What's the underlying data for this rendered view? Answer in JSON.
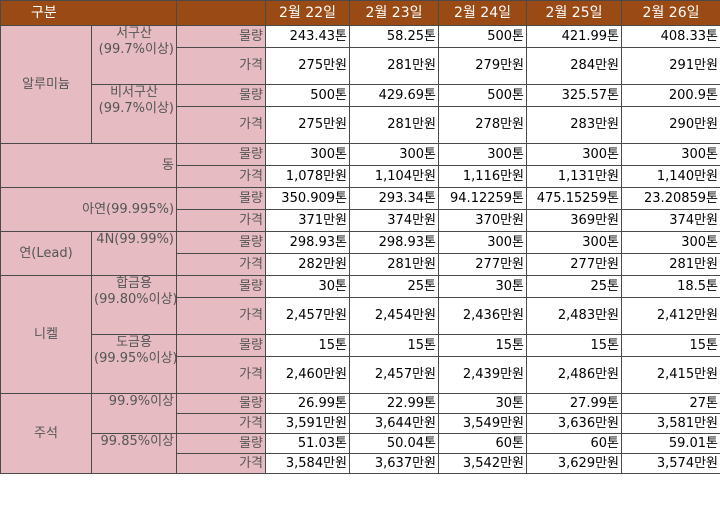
{
  "header": {
    "category": "구분",
    "dates": [
      "2월 22일",
      "2월 23일",
      "2월 24일",
      "2월 25일",
      "2월 26일"
    ]
  },
  "labels": {
    "qty": "물량",
    "price": "가격"
  },
  "groups": {
    "aluminum": {
      "name": "알루미늄",
      "sub1": {
        "name": "서구산",
        "purity": "(99.7%이상)",
        "qty": [
          "243.43톤",
          "58.25톤",
          "500톤",
          "421.99톤",
          "408.33톤"
        ],
        "price": [
          "275만원",
          "281만원",
          "279만원",
          "284만원",
          "291만원"
        ]
      },
      "sub2": {
        "name": "비서구산",
        "purity": "(99.7%이상)",
        "qty": [
          "500톤",
          "429.69톤",
          "500톤",
          "325.57톤",
          "200.9톤"
        ],
        "price": [
          "275만원",
          "281만원",
          "278만원",
          "283만원",
          "290만원"
        ]
      }
    },
    "copper": {
      "name": "동",
      "qty": [
        "300톤",
        "300톤",
        "300톤",
        "300톤",
        "300톤"
      ],
      "price": [
        "1,078만원",
        "1,104만원",
        "1,116만원",
        "1,131만원",
        "1,140만원"
      ]
    },
    "zinc": {
      "name": "아연(99.995%)",
      "qty": [
        "350.909톤",
        "293.34톤",
        "94.12259톤",
        "475.15259톤",
        "23.20859톤"
      ],
      "price": [
        "371만원",
        "374만원",
        "370만원",
        "369만원",
        "374만원"
      ]
    },
    "lead": {
      "name": "연(Lead)",
      "sub": "4N(99.99%)",
      "qty": [
        "298.93톤",
        "298.93톤",
        "300톤",
        "300톤",
        "300톤"
      ],
      "price": [
        "282만원",
        "281만원",
        "277만원",
        "277만원",
        "281만원"
      ]
    },
    "nickel": {
      "name": "니켈",
      "sub1": {
        "name": "합금용",
        "purity": "(99.80%이상)",
        "qty": [
          "30톤",
          "25톤",
          "30톤",
          "25톤",
          "18.5톤"
        ],
        "price": [
          "2,457만원",
          "2,454만원",
          "2,436만원",
          "2,483만원",
          "2,412만원"
        ]
      },
      "sub2": {
        "name": "도금용",
        "purity": "(99.95%이상)",
        "qty": [
          "15톤",
          "15톤",
          "15톤",
          "15톤",
          "15톤"
        ],
        "price": [
          "2,460만원",
          "2,457만원",
          "2,439만원",
          "2,486만원",
          "2,415만원"
        ]
      }
    },
    "tin": {
      "name": "주석",
      "sub1": {
        "name": "99.9%이상",
        "qty": [
          "26.99톤",
          "22.99톤",
          "30톤",
          "27.99톤",
          "27톤"
        ],
        "price": [
          "3,591만원",
          "3,644만원",
          "3,549만원",
          "3,636만원",
          "3,581만원"
        ]
      },
      "sub2": {
        "name": "99.85%이상",
        "qty": [
          "51.03톤",
          "50.04톤",
          "60톤",
          "60톤",
          "59.01톤"
        ],
        "price": [
          "3,584만원",
          "3,637만원",
          "3,542만원",
          "3,629만원",
          "3,574만원"
        ]
      }
    }
  }
}
